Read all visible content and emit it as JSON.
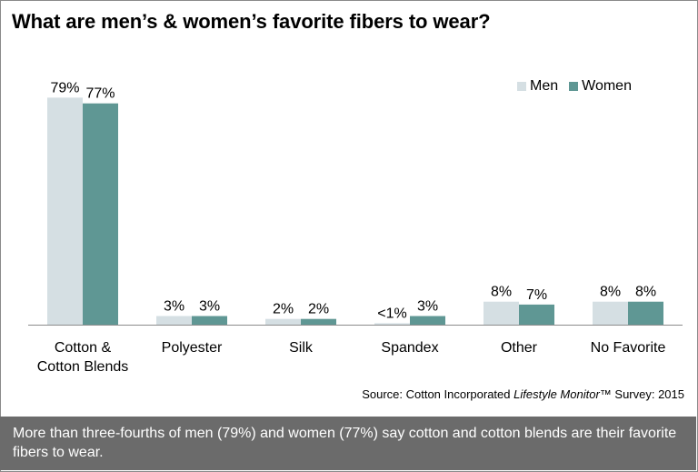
{
  "title": "What are men’s & women’s favorite fibers to wear?",
  "source": {
    "prefix": "Source: Cotton Incorporated ",
    "italic": "Lifestyle Monitor",
    "suffix": "™ Survey: 2015"
  },
  "footer_text": "More than three-fourths of men (79%) and women (77%) say cotton and cotton blends are their favorite fibers to wear.",
  "colors": {
    "men": "#d5dfe3",
    "women": "#5f9794",
    "axis": "#8c8c8c",
    "footer_bg": "#6b6b6b"
  },
  "chart_data": {
    "type": "bar",
    "categories": [
      [
        "Cotton &",
        "Cotton Blends"
      ],
      [
        "Polyester"
      ],
      [
        "Silk"
      ],
      [
        "Spandex"
      ],
      [
        "Other"
      ],
      [
        "No Favorite"
      ]
    ],
    "series": [
      {
        "name": "Men",
        "values": [
          79,
          3,
          2,
          0.5,
          8,
          8
        ],
        "labels": [
          "79%",
          "3%",
          "2%",
          "<1%",
          "8%",
          "8%"
        ]
      },
      {
        "name": "Women",
        "values": [
          77,
          3,
          2,
          3,
          7,
          8
        ],
        "labels": [
          "77%",
          "3%",
          "2%",
          "3%",
          "7%",
          "8%"
        ]
      }
    ],
    "ylim": [
      0,
      100
    ],
    "legend_position": "top-right",
    "grid": false,
    "xlabel": "",
    "ylabel": ""
  }
}
